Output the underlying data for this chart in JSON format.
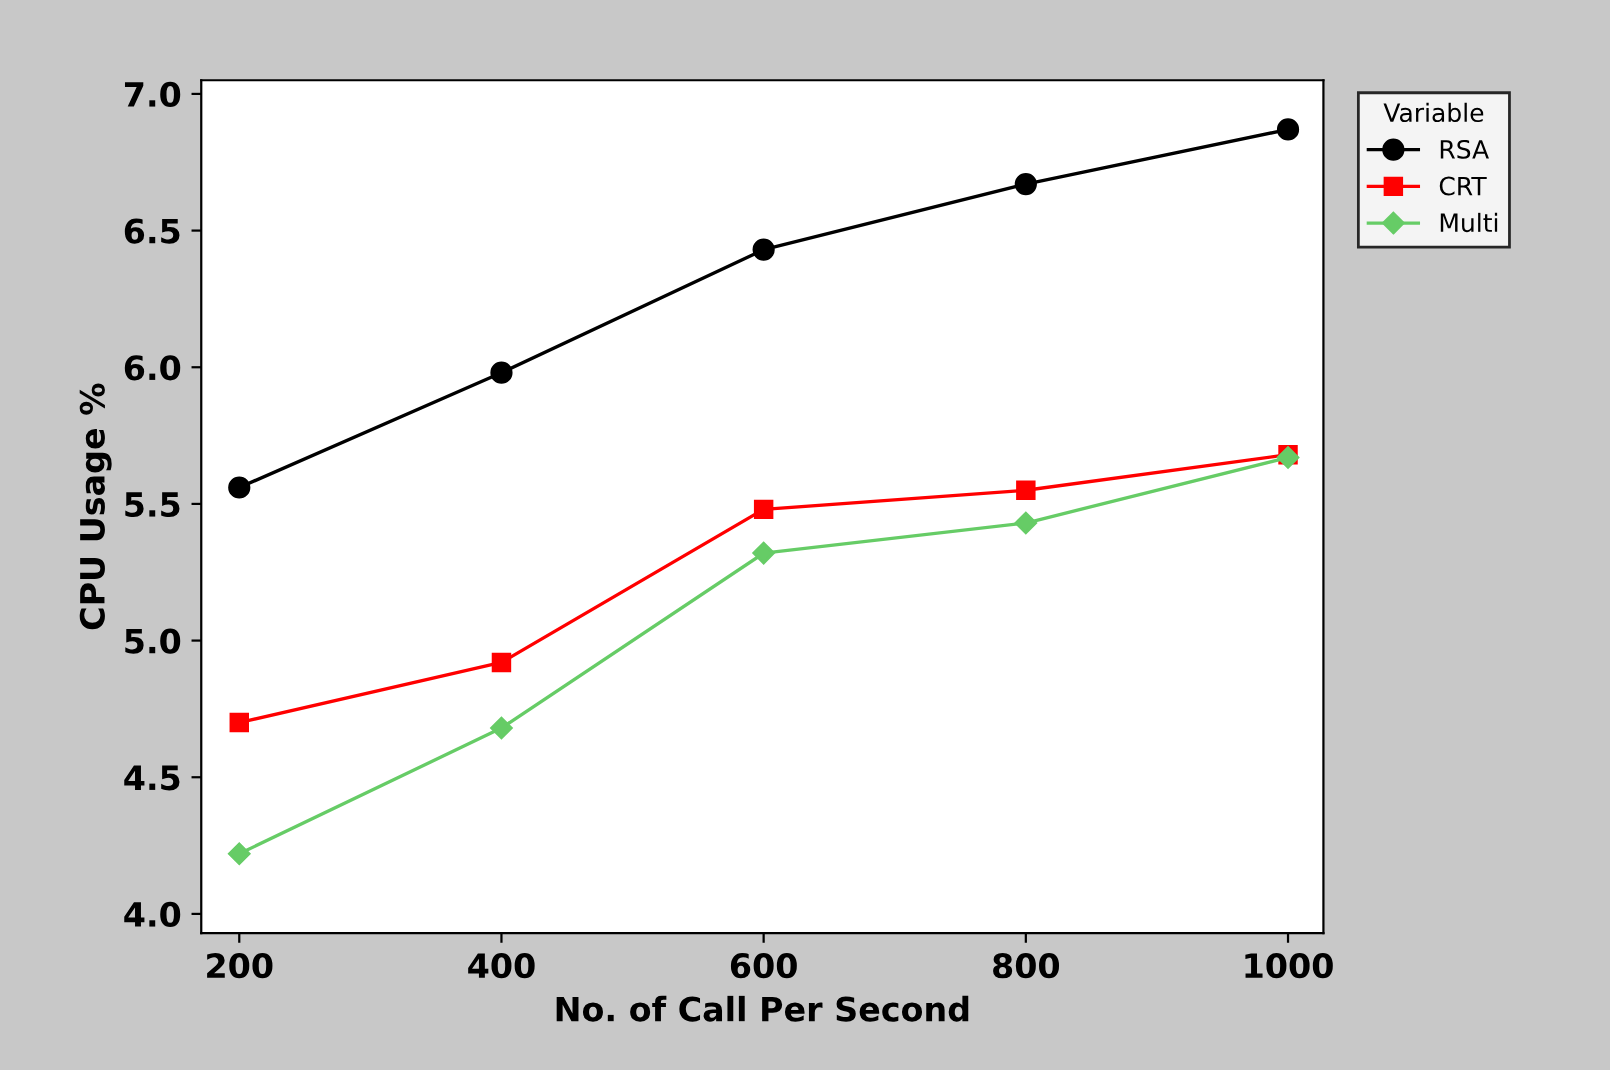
{
  "chart_data": {
    "type": "line",
    "xlabel": "No. of Call Per Second",
    "ylabel": "CPU Usage %",
    "legend_title": "Variable",
    "x": [
      200,
      400,
      600,
      800,
      1000
    ],
    "series": [
      {
        "name": "RSA",
        "color": "#000000",
        "marker": "circle",
        "values": [
          5.56,
          5.98,
          6.43,
          6.67,
          6.87
        ]
      },
      {
        "name": "CRT",
        "color": "#ff0000",
        "marker": "square",
        "values": [
          4.7,
          4.92,
          5.48,
          5.55,
          5.68
        ]
      },
      {
        "name": "Multi",
        "color": "#66cc66",
        "marker": "diamond",
        "values": [
          4.22,
          4.68,
          5.32,
          5.43,
          5.67
        ]
      }
    ],
    "xlim": [
      171,
      1027
    ],
    "ylim": [
      3.93,
      7.05
    ],
    "xticks": [
      200,
      400,
      600,
      800,
      1000
    ],
    "yticks": [
      {
        "value": 4,
        "label": "4.0"
      },
      4.5,
      {
        "value": 5,
        "label": "5.0"
      },
      5.5,
      {
        "value": 6,
        "label": "6.0"
      },
      6.5,
      {
        "value": 7,
        "label": "7.0"
      }
    ],
    "legend": "top right",
    "grid": false,
    "line_style": "solid"
  }
}
